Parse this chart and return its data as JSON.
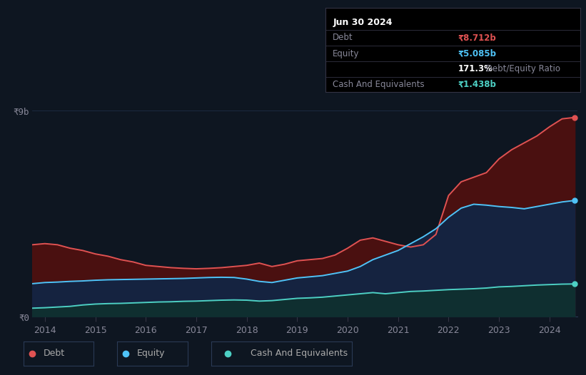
{
  "bg_color": "#0e1621",
  "plot_bg_color": "#0e1621",
  "grid_color": "#1e2d45",
  "title_box": {
    "date": "Jun 30 2024",
    "debt_label": "Debt",
    "debt_value": "₹8.712b",
    "debt_color": "#e05252",
    "equity_label": "Equity",
    "equity_value": "₹5.085b",
    "equity_color": "#4fc3f7",
    "ratio_bold": "171.3%",
    "ratio_rest": " Debt/Equity Ratio",
    "ratio_color_bold": "#ffffff",
    "ratio_color_rest": "#aaaaaa",
    "cash_label": "Cash And Equivalents",
    "cash_value": "₹1.438b",
    "cash_color": "#4dd0c4",
    "box_bg": "#000000",
    "box_border": "#333344",
    "box_text_color": "#888899"
  },
  "debt_color": "#e05252",
  "equity_color": "#4fc3f7",
  "cash_color": "#4dd0c4",
  "debt_fill": "#4a1010",
  "equity_fill": "#152340",
  "cash_fill": "#0f2f30",
  "ylim": [
    0,
    9.5
  ],
  "ytick_vals": [
    0,
    9
  ],
  "ytick_labels": [
    "₹0",
    "₹9b"
  ],
  "xticks": [
    2014,
    2015,
    2016,
    2017,
    2018,
    2019,
    2020,
    2021,
    2022,
    2023,
    2024
  ],
  "legend_labels": [
    "Debt",
    "Equity",
    "Cash And Equivalents"
  ],
  "legend_colors": [
    "#e05252",
    "#4fc3f7",
    "#4dd0c4"
  ]
}
